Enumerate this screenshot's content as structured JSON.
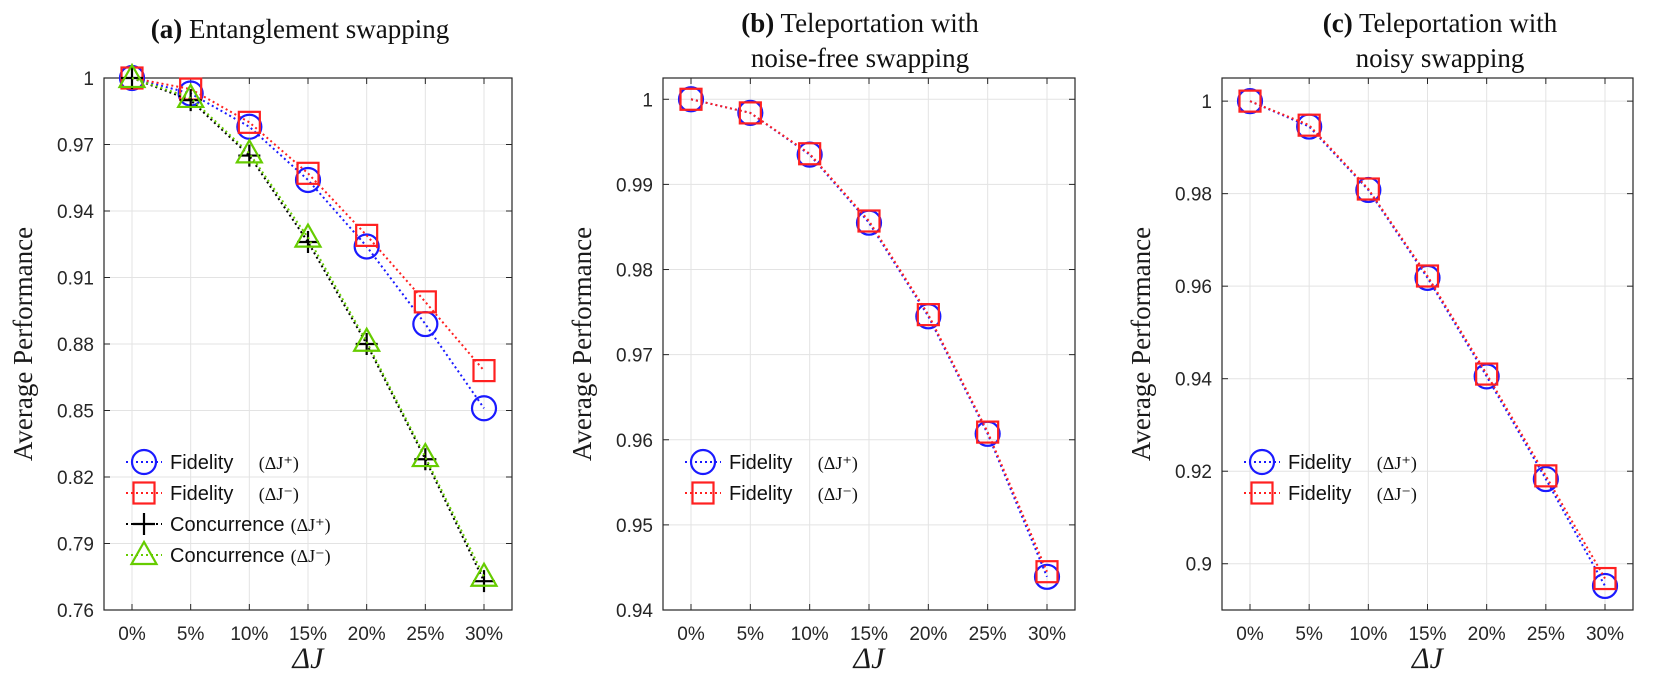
{
  "chart_data": [
    {
      "type": "line",
      "panel": "(a)",
      "title": "Entanglement swapping",
      "title_lines": [
        "Entanglement swapping"
      ],
      "xlabel": "ΔJ",
      "ylabel": "Average Performance",
      "categories": [
        "0%",
        "5%",
        "10%",
        "15%",
        "20%",
        "25%",
        "30%"
      ],
      "ylim": [
        0.76,
        1.0
      ],
      "yticks": [
        0.76,
        0.79,
        0.82,
        0.85,
        0.88,
        0.91,
        0.94,
        0.97,
        1.0
      ],
      "ytick_labels": [
        "0.76",
        "0.79",
        "0.82",
        "0.85",
        "0.88",
        "0.91",
        "0.94",
        "0.97",
        "1"
      ],
      "grid": true,
      "legend_position": "bottom-left",
      "series": [
        {
          "name": "Fidelity",
          "sub": "(ΔJ⁺)",
          "color": "#1a1aff",
          "marker": "circle",
          "values": [
            1.0,
            0.993,
            0.978,
            0.954,
            0.924,
            0.889,
            0.851
          ]
        },
        {
          "name": "Fidelity",
          "sub": "(ΔJ⁻)",
          "color": "#ff2020",
          "marker": "square",
          "values": [
            1.0,
            0.995,
            0.98,
            0.957,
            0.929,
            0.899,
            0.868
          ]
        },
        {
          "name": "Concurrence",
          "sub": "(ΔJ⁺)",
          "color": "#000000",
          "marker": "plus",
          "values": [
            1.0,
            0.99,
            0.965,
            0.926,
            0.88,
            0.828,
            0.773
          ]
        },
        {
          "name": "Concurrence",
          "sub": "(ΔJ⁻)",
          "color": "#66cc00",
          "marker": "triangle",
          "values": [
            1.0,
            0.991,
            0.966,
            0.928,
            0.881,
            0.829,
            0.775
          ]
        }
      ]
    },
    {
      "type": "line",
      "panel": "(b)",
      "title": "Teleportation with noise-free swapping",
      "title_lines": [
        "Teleportation with",
        "noise-free swapping"
      ],
      "xlabel": "ΔJ",
      "ylabel": "Average Performance",
      "categories": [
        "0%",
        "5%",
        "10%",
        "15%",
        "20%",
        "25%",
        "30%"
      ],
      "ylim": [
        0.94,
        1.0025
      ],
      "yticks": [
        0.94,
        0.95,
        0.96,
        0.97,
        0.98,
        0.99,
        1.0
      ],
      "ytick_labels": [
        "0.94",
        "0.95",
        "0.96",
        "0.97",
        "0.98",
        "0.99",
        "1"
      ],
      "grid": true,
      "legend_position": "bottom-left",
      "series": [
        {
          "name": "Fidelity",
          "sub": "(ΔJ⁺)",
          "color": "#1a1aff",
          "marker": "circle",
          "values": [
            1.0,
            0.9984,
            0.9935,
            0.9855,
            0.9745,
            0.9607,
            0.9439
          ]
        },
        {
          "name": "Fidelity",
          "sub": "(ΔJ⁻)",
          "color": "#ff2020",
          "marker": "square",
          "values": [
            1.0,
            0.9984,
            0.9936,
            0.9857,
            0.9747,
            0.9609,
            0.9445
          ]
        }
      ]
    },
    {
      "type": "line",
      "panel": "(c)",
      "title": "Teleportation with noisy swapping",
      "title_lines": [
        "Teleportation with",
        "noisy swapping"
      ],
      "xlabel": "ΔJ",
      "ylabel": "Average Performance",
      "categories": [
        "0%",
        "5%",
        "10%",
        "15%",
        "20%",
        "25%",
        "30%"
      ],
      "ylim": [
        0.89,
        1.005
      ],
      "yticks": [
        0.9,
        0.92,
        0.94,
        0.96,
        0.98,
        1.0
      ],
      "ytick_labels": [
        "0.9",
        "0.92",
        "0.94",
        "0.96",
        "0.98",
        "1"
      ],
      "grid": true,
      "legend_position": "bottom-left",
      "series": [
        {
          "name": "Fidelity",
          "sub": "(ΔJ⁺)",
          "color": "#1a1aff",
          "marker": "circle",
          "values": [
            1.0,
            0.9945,
            0.9808,
            0.9618,
            0.9405,
            0.9183,
            0.8952
          ]
        },
        {
          "name": "Fidelity",
          "sub": "(ΔJ⁻)",
          "color": "#ff2020",
          "marker": "square",
          "values": [
            1.0,
            0.9948,
            0.981,
            0.9622,
            0.941,
            0.919,
            0.8968
          ]
        }
      ]
    }
  ]
}
